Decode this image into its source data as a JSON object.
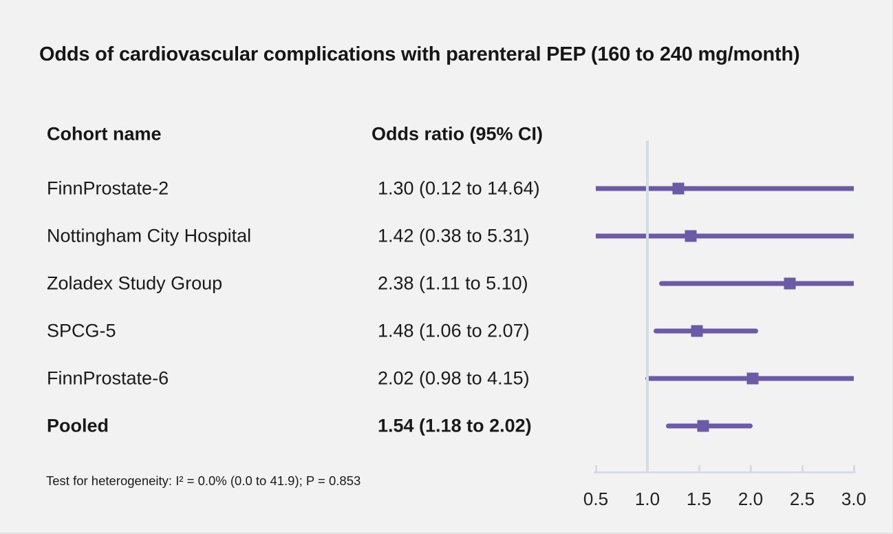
{
  "chart_data": {
    "type": "scatter",
    "variant": "forest-plot",
    "title": "Odds of cardiovascular complications with parenteral PEP (160 to 240 mg/month)",
    "columns": {
      "cohort": "Cohort name",
      "odds": "Odds ratio (95% CI)"
    },
    "rows": [
      {
        "label": "FinnProstate-2",
        "or": 1.3,
        "ci_low": 0.12,
        "ci_high": 14.64,
        "display": "1.30 (0.12 to 14.64)",
        "bold": false
      },
      {
        "label": "Nottingham City Hospital",
        "or": 1.42,
        "ci_low": 0.38,
        "ci_high": 5.31,
        "display": "1.42 (0.38 to 5.31)",
        "bold": false
      },
      {
        "label": "Zoladex Study Group",
        "or": 2.38,
        "ci_low": 1.11,
        "ci_high": 5.1,
        "display": "2.38 (1.11 to 5.10)",
        "bold": false
      },
      {
        "label": "SPCG-5",
        "or": 1.48,
        "ci_low": 1.06,
        "ci_high": 2.07,
        "display": "1.48 (1.06 to 2.07)",
        "bold": false
      },
      {
        "label": "FinnProstate-6",
        "or": 2.02,
        "ci_low": 0.98,
        "ci_high": 4.15,
        "display": "2.02 (0.98 to 4.15)",
        "bold": false
      },
      {
        "label": "Pooled",
        "or": 1.54,
        "ci_low": 1.18,
        "ci_high": 2.02,
        "display": "1.54 (1.18 to 2.02)",
        "bold": true
      }
    ],
    "x_axis": {
      "min": 0.5,
      "max": 3.0,
      "reference_line": 1.0,
      "ticks": [
        "0.5",
        "1.0",
        "1.5",
        "2.0",
        "2.5",
        "3.0"
      ],
      "grid": false
    },
    "footnote": "Test for heterogeneity: I² = 0.0% (0.0 to 41.9); P = 0.853",
    "colors": {
      "marker": "#6b5ba7",
      "ci_line": "#6b5ba7",
      "axis": "#d8dbe2",
      "background": "#f2f2f2",
      "text": "#161616"
    }
  }
}
